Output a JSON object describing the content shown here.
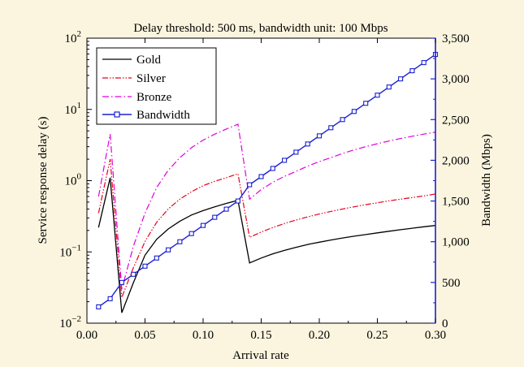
{
  "chart_data": {
    "type": "line",
    "title": "Delay threshold: 500 ms, bandwidth unit: 100 Mbps",
    "xlabel": "Arrival rate",
    "ylabel_left": "Service response delay (s)",
    "ylabel_right": "Bandwidth (Mbps)",
    "x_ticks": [
      "0.00",
      "0.05",
      "0.10",
      "0.15",
      "0.20",
      "0.25",
      "0.30"
    ],
    "x_range": [
      0,
      0.3
    ],
    "y_left_scale": "log",
    "y_left_range": [
      0.01,
      100
    ],
    "y_left_ticks": [
      {
        "value": 0.01,
        "base": "10",
        "exp": "−2"
      },
      {
        "value": 0.1,
        "base": "10",
        "exp": "−1"
      },
      {
        "value": 1,
        "base": "10",
        "exp": "0"
      },
      {
        "value": 10,
        "base": "10",
        "exp": "1"
      },
      {
        "value": 100,
        "base": "10",
        "exp": "2"
      }
    ],
    "y_right_range": [
      0,
      3500
    ],
    "y_right_ticks": [
      "0",
      "500",
      "1,000",
      "1,500",
      "2,000",
      "2,500",
      "3,000",
      "3,500"
    ],
    "legend_position": "top-left",
    "grid": false,
    "colors": {
      "background": "#FBF5DF",
      "plot_background": "#FFFFFF",
      "gold": "#000000",
      "silver": "#E8001C",
      "bronze": "#E000E0",
      "bandwidth": "#1A20D0"
    },
    "series": [
      {
        "name": "Gold",
        "axis": "left",
        "style": "solid",
        "x": [
          0.01,
          0.02,
          0.03,
          0.04,
          0.05,
          0.06,
          0.07,
          0.08,
          0.09,
          0.1,
          0.11,
          0.12,
          0.13,
          0.14,
          0.15,
          0.16,
          0.17,
          0.18,
          0.19,
          0.2,
          0.21,
          0.22,
          0.23,
          0.24,
          0.25,
          0.26,
          0.27,
          0.28,
          0.29,
          0.3
        ],
        "values": [
          0.22,
          1.1,
          0.014,
          0.037,
          0.09,
          0.15,
          0.21,
          0.27,
          0.33,
          0.38,
          0.43,
          0.48,
          0.53,
          0.07,
          0.082,
          0.094,
          0.105,
          0.116,
          0.127,
          0.137,
          0.147,
          0.157,
          0.166,
          0.175,
          0.185,
          0.195,
          0.205,
          0.215,
          0.225,
          0.235
        ]
      },
      {
        "name": "Silver",
        "axis": "left",
        "style": "dash-dot-dot",
        "x": [
          0.01,
          0.02,
          0.03,
          0.04,
          0.05,
          0.06,
          0.07,
          0.08,
          0.09,
          0.1,
          0.11,
          0.12,
          0.13,
          0.14,
          0.15,
          0.16,
          0.17,
          0.18,
          0.19,
          0.2,
          0.21,
          0.22,
          0.23,
          0.24,
          0.25,
          0.26,
          0.27,
          0.28,
          0.29,
          0.3
        ],
        "values": [
          0.35,
          2.0,
          0.023,
          0.06,
          0.14,
          0.26,
          0.4,
          0.55,
          0.7,
          0.85,
          0.98,
          1.1,
          1.25,
          0.16,
          0.19,
          0.22,
          0.25,
          0.28,
          0.31,
          0.34,
          0.37,
          0.4,
          0.43,
          0.46,
          0.49,
          0.52,
          0.55,
          0.58,
          0.61,
          0.65
        ]
      },
      {
        "name": "Bronze",
        "axis": "left",
        "style": "dash-dot",
        "x": [
          0.01,
          0.02,
          0.03,
          0.04,
          0.05,
          0.06,
          0.07,
          0.08,
          0.09,
          0.1,
          0.11,
          0.12,
          0.13,
          0.14,
          0.15,
          0.16,
          0.17,
          0.18,
          0.19,
          0.2,
          0.21,
          0.22,
          0.23,
          0.24,
          0.25,
          0.26,
          0.27,
          0.28,
          0.29,
          0.3
        ],
        "values": [
          0.6,
          4.5,
          0.03,
          0.12,
          0.35,
          0.8,
          1.4,
          2.1,
          2.9,
          3.7,
          4.5,
          5.3,
          6.2,
          0.55,
          0.75,
          0.95,
          1.15,
          1.35,
          1.6,
          1.85,
          2.1,
          2.4,
          2.7,
          3.0,
          3.3,
          3.6,
          3.9,
          4.2,
          4.5,
          4.8
        ]
      },
      {
        "name": "Bandwidth",
        "axis": "right",
        "style": "solid-square-markers",
        "x": [
          0.01,
          0.02,
          0.03,
          0.04,
          0.05,
          0.06,
          0.07,
          0.08,
          0.09,
          0.1,
          0.11,
          0.12,
          0.13,
          0.14,
          0.15,
          0.16,
          0.17,
          0.18,
          0.19,
          0.2,
          0.21,
          0.22,
          0.23,
          0.24,
          0.25,
          0.26,
          0.27,
          0.28,
          0.29,
          0.3
        ],
        "values": [
          200,
          300,
          500,
          600,
          700,
          800,
          900,
          1000,
          1100,
          1200,
          1300,
          1400,
          1500,
          1700,
          1800,
          1900,
          2000,
          2100,
          2200,
          2300,
          2400,
          2500,
          2600,
          2700,
          2800,
          2900,
          3000,
          3100,
          3200,
          3300
        ]
      }
    ]
  }
}
